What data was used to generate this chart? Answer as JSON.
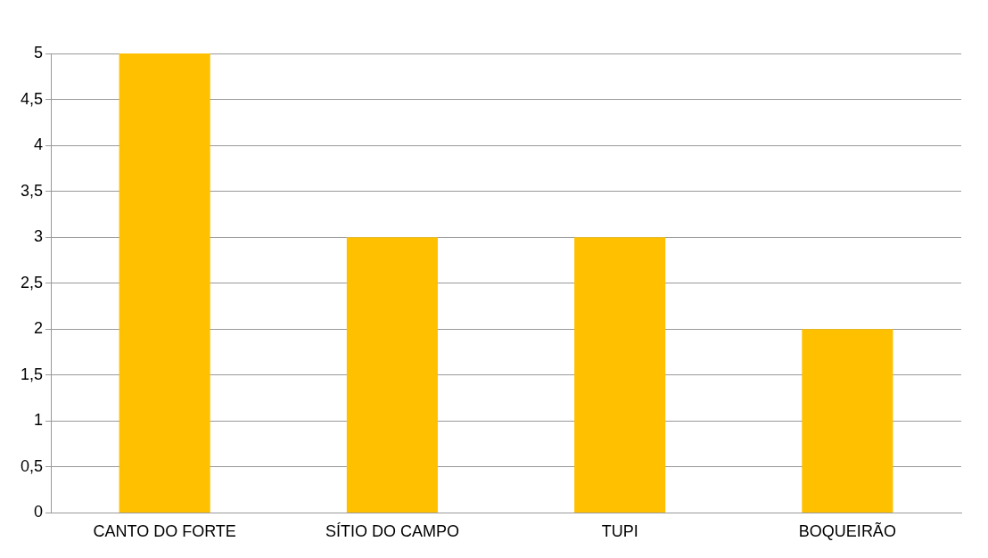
{
  "chart_data": {
    "type": "bar",
    "categories": [
      "CANTO DO FORTE",
      "SÍTIO DO CAMPO",
      "TUPI",
      "BOQUEIRÃO"
    ],
    "values": [
      5,
      3,
      3,
      2
    ],
    "color": "#ffc000",
    "ylim": [
      0,
      5
    ],
    "yticks": [
      0,
      {
        "value": 0.5,
        "label": "0,5"
      },
      1,
      {
        "value": 1.5,
        "label": "1,5"
      },
      2,
      {
        "value": 2.5,
        "label": "2,5"
      },
      3,
      {
        "value": 3.5,
        "label": "3,5"
      },
      4,
      {
        "value": 4.5,
        "label": "4,5"
      },
      5
    ],
    "grid": "y",
    "legend": false
  }
}
